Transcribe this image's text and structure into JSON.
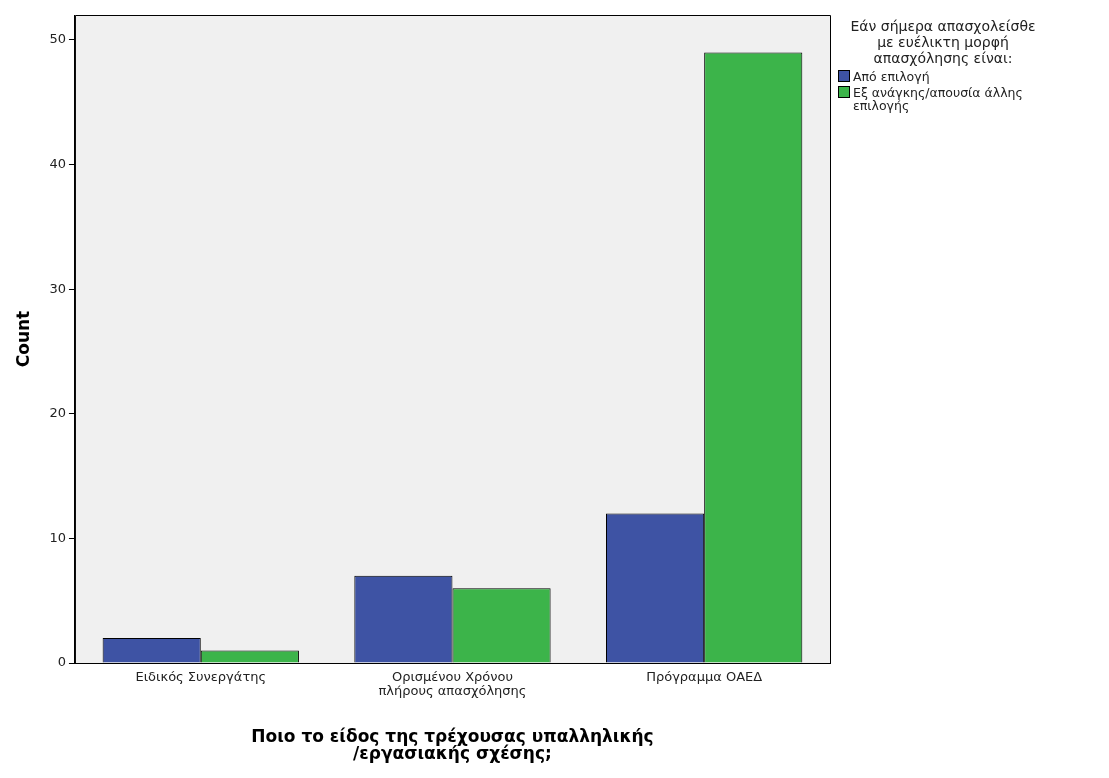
{
  "chart_data": {
    "type": "bar",
    "categories": [
      "Ειδικός Συνεργάτης",
      "Ορισμένου Χρόνου πλήρους απασχόλησης",
      "Πρόγραμμα ΟΑΕΔ"
    ],
    "series": [
      {
        "name": "Από επιλογή",
        "color": "#3e53a4",
        "values": [
          2,
          7,
          12
        ]
      },
      {
        "name": "Εξ ανάγκης/απουσία άλλης επιλογής",
        "color": "#3cb44a",
        "values": [
          1,
          6,
          49
        ]
      }
    ],
    "xlabel": "Ποιο το είδος της τρέχουσας υπαλληλικής /εργασιακής σχέσης;",
    "ylabel": "Count",
    "legend_title": "Εάν σήμερα απασχολείσθε με ευέλικτη μορφή απασχόλησης είναι:",
    "ylim": [
      0,
      52
    ],
    "yticks": [
      0,
      10,
      20,
      30,
      40,
      50
    ],
    "grid": false,
    "legend": "right"
  }
}
